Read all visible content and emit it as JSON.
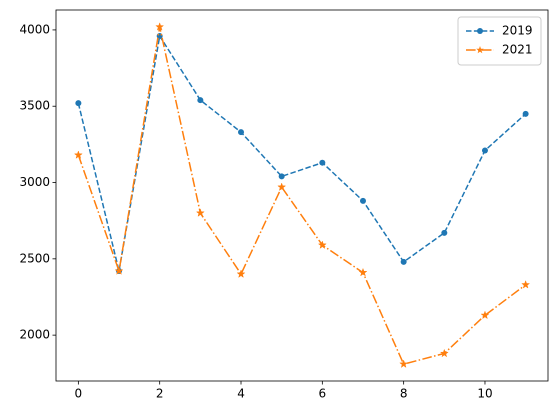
{
  "chart_data": {
    "type": "line",
    "x": [
      0,
      1,
      2,
      3,
      4,
      5,
      6,
      7,
      8,
      9,
      10,
      11
    ],
    "series": [
      {
        "name": "2019",
        "color": "#1f77b4",
        "linestyle": "dashed",
        "marker": "circle",
        "values": [
          3520,
          2420,
          3960,
          3540,
          3330,
          3040,
          3130,
          2880,
          2480,
          2670,
          3210,
          3450
        ]
      },
      {
        "name": "2021",
        "color": "#ff7f0e",
        "linestyle": "dashdot",
        "marker": "star",
        "values": [
          3180,
          2420,
          4020,
          2800,
          2400,
          2970,
          2590,
          2410,
          1810,
          1880,
          2130,
          2330
        ]
      }
    ],
    "xlim": [
      -0.55,
      11.55
    ],
    "xticks": [
      0,
      2,
      4,
      6,
      8,
      10
    ],
    "ylim": [
      1699.5,
      4130.5
    ],
    "yticks": [
      2000,
      2500,
      3000,
      3500,
      4000
    ],
    "grid": false,
    "legend": "upper right"
  }
}
